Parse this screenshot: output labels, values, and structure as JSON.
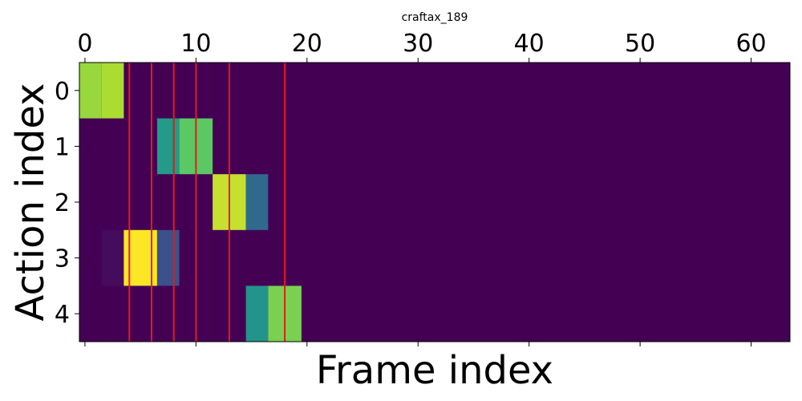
{
  "chart_data": {
    "type": "heatmap",
    "title": "craftax_189",
    "xlabel": "Frame index",
    "ylabel": "Action index",
    "x_ticks": [
      "0",
      "10",
      "20",
      "30",
      "40",
      "50",
      "60"
    ],
    "y_ticks": [
      "0",
      "1",
      "2",
      "3",
      "4"
    ],
    "xlim": [
      -0.5,
      63.5
    ],
    "ylim": [
      -0.5,
      4.5
    ],
    "x_axis_position": "top",
    "colormap": "viridis",
    "value_range": [
      0,
      1
    ],
    "grid": false,
    "cells": [
      {
        "row": 0,
        "start": -0.5,
        "end": 1.5,
        "value": 0.85
      },
      {
        "row": 0,
        "start": 1.5,
        "end": 3.5,
        "value": 0.88
      },
      {
        "row": 1,
        "start": 6.5,
        "end": 8.5,
        "value": 0.55
      },
      {
        "row": 1,
        "start": 8.5,
        "end": 11.5,
        "value": 0.75
      },
      {
        "row": 2,
        "start": 11.5,
        "end": 14.5,
        "value": 0.92
      },
      {
        "row": 2,
        "start": 14.5,
        "end": 16.5,
        "value": 0.35
      },
      {
        "row": 3,
        "start": 1.5,
        "end": 3.5,
        "value": 0.03
      },
      {
        "row": 3,
        "start": 3.5,
        "end": 6.5,
        "value": 1.0
      },
      {
        "row": 3,
        "start": 6.5,
        "end": 8.5,
        "value": 0.25
      },
      {
        "row": 4,
        "start": 14.5,
        "end": 16.5,
        "value": 0.52
      },
      {
        "row": 4,
        "start": 16.5,
        "end": 19.5,
        "value": 0.8
      }
    ],
    "vlines": [
      4,
      6,
      8,
      10,
      13,
      18
    ],
    "vline_color": "#e31a1c",
    "background_color": "#440154"
  }
}
